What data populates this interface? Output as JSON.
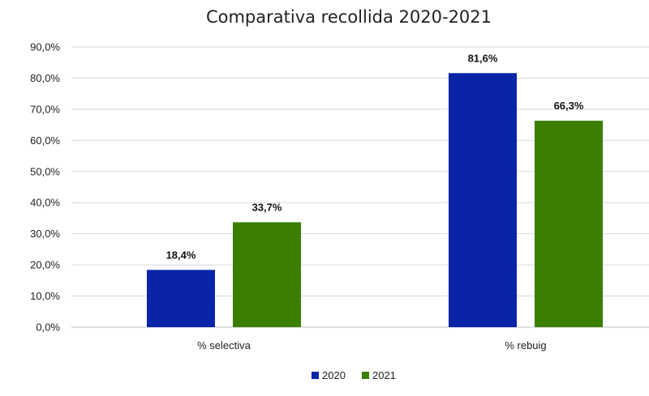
{
  "chart_data": {
    "type": "bar",
    "title": "Comparativa recollida 2020-2021",
    "categories": [
      "% selectiva",
      "% rebuig"
    ],
    "series": [
      {
        "name": "2020",
        "values": [
          18.4,
          81.6
        ],
        "labels": [
          "18,4%",
          "81,6%"
        ],
        "color": "#0A24A8"
      },
      {
        "name": "2021",
        "values": [
          33.7,
          66.3
        ],
        "labels": [
          "33,7%",
          "66,3%"
        ],
        "color": "#3A7F00"
      }
    ],
    "ylim": [
      0,
      90
    ],
    "yticks": [
      0,
      10,
      20,
      30,
      40,
      50,
      60,
      70,
      80,
      90
    ],
    "ytick_labels": [
      "0,0%",
      "10,0%",
      "20,0%",
      "30,0%",
      "40,0%",
      "50,0%",
      "60,0%",
      "70,0%",
      "80,0%",
      "90,0%"
    ],
    "grid": true,
    "legend_position": "bottom",
    "xlabel": "",
    "ylabel": ""
  }
}
